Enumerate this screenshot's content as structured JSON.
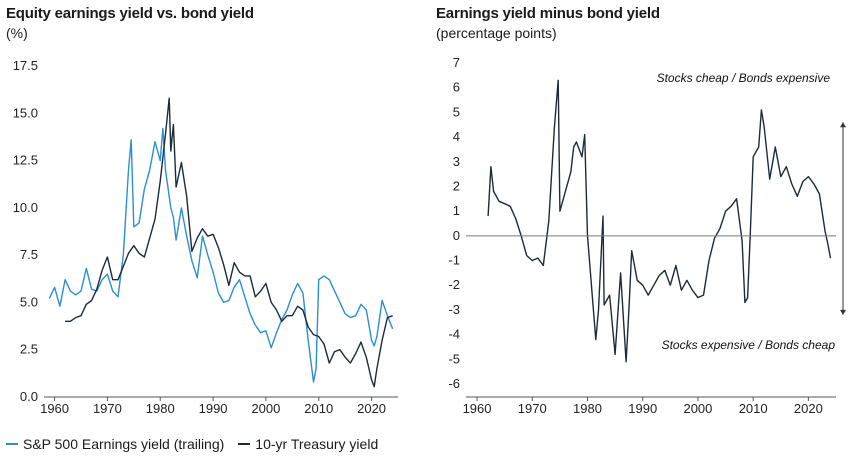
{
  "colors": {
    "earnings": "#2a8fd6",
    "treasury": "#1c2b3a",
    "axis": "#555555"
  },
  "left_panel": {
    "title": "Equity earnings yield vs. bond yield",
    "subtitle": "(%)"
  },
  "right_panel": {
    "title": "Earnings yield minus bond yield",
    "subtitle": "(percentage points)"
  },
  "legend": {
    "earnings_label": "S&P 500 Earnings yield (trailing)",
    "treasury_label": "10-yr Treasury yield"
  },
  "chart_data": [
    {
      "type": "line",
      "title": "Equity earnings yield vs. bond yield",
      "ylabel": "(%)",
      "xlim": [
        1958,
        2025
      ],
      "ylim": [
        0,
        17.5
      ],
      "x_ticks": [
        "1960",
        "1970",
        "1980",
        "1990",
        "2000",
        "2010",
        "2020"
      ],
      "y_ticks": [
        "0.0",
        "2.5",
        "5.0",
        "7.5",
        "10.0",
        "12.5",
        "15.0",
        "17.5"
      ],
      "grid": false,
      "legend": "bottom",
      "series": [
        {
          "name": "S&P 500 Earnings yield (trailing)",
          "x": [
            1959,
            1960,
            1961,
            1962,
            1963,
            1964,
            1965,
            1966,
            1967,
            1968,
            1969,
            1970,
            1971,
            1972,
            1973,
            1974,
            1974.5,
            1975,
            1976,
            1977,
            1978,
            1979,
            1980,
            1980.5,
            1981,
            1982,
            1982.5,
            1983,
            1984,
            1985,
            1986,
            1987,
            1988,
            1989,
            1990,
            1991,
            1992,
            1993,
            1994,
            1995,
            1996,
            1997,
            1998,
            1999,
            2000,
            2001,
            2002,
            2003,
            2004,
            2005,
            2006,
            2007,
            2008,
            2009,
            2009.5,
            2010,
            2011,
            2012,
            2013,
            2014,
            2015,
            2016,
            2017,
            2018,
            2019,
            2020,
            2020.5,
            2021,
            2022,
            2023,
            2024
          ],
          "values": [
            5.2,
            5.8,
            4.8,
            6.2,
            5.6,
            5.4,
            5.6,
            6.8,
            5.7,
            5.6,
            6.2,
            6.5,
            5.6,
            5.3,
            7.5,
            12.0,
            13.6,
            9.0,
            9.2,
            11.0,
            12.0,
            13.5,
            12.5,
            14.2,
            12.0,
            10.0,
            9.5,
            8.3,
            10.0,
            8.5,
            7.2,
            6.3,
            8.5,
            7.5,
            6.6,
            5.5,
            5.0,
            5.1,
            5.8,
            6.2,
            5.3,
            4.4,
            3.8,
            3.4,
            3.5,
            2.6,
            3.4,
            4.1,
            4.6,
            5.4,
            6.0,
            5.5,
            3.0,
            0.8,
            1.5,
            6.2,
            6.4,
            6.2,
            5.6,
            5.0,
            4.4,
            4.2,
            4.3,
            4.9,
            4.6,
            3.0,
            2.7,
            3.2,
            5.1,
            4.3,
            3.6
          ]
        },
        {
          "name": "10-yr Treasury yield",
          "x": [
            1962,
            1963,
            1964,
            1965,
            1966,
            1967,
            1968,
            1969,
            1970,
            1971,
            1972,
            1973,
            1974,
            1975,
            1976,
            1977,
            1978,
            1979,
            1980,
            1981,
            1981.7,
            1982,
            1982.5,
            1983,
            1984,
            1985,
            1986,
            1987,
            1988,
            1989,
            1990,
            1991,
            1992,
            1993,
            1994,
            1995,
            1996,
            1997,
            1998,
            1999,
            2000,
            2001,
            2002,
            2003,
            2004,
            2005,
            2006,
            2007,
            2008,
            2009,
            2010,
            2011,
            2012,
            2013,
            2014,
            2015,
            2016,
            2017,
            2018,
            2019,
            2020,
            2020.5,
            2021,
            2022,
            2023,
            2024
          ],
          "values": [
            4.0,
            4.0,
            4.2,
            4.3,
            4.9,
            5.1,
            5.7,
            6.7,
            7.4,
            6.2,
            6.2,
            6.9,
            7.6,
            8.0,
            7.6,
            7.4,
            8.4,
            9.4,
            11.4,
            13.9,
            15.8,
            13.0,
            14.4,
            11.1,
            12.4,
            10.6,
            7.7,
            8.4,
            8.9,
            8.5,
            8.6,
            7.9,
            7.0,
            5.9,
            7.1,
            6.6,
            6.4,
            6.4,
            5.3,
            5.6,
            6.0,
            5.0,
            4.6,
            4.0,
            4.3,
            4.3,
            4.8,
            4.6,
            3.7,
            3.3,
            3.2,
            2.8,
            1.8,
            2.4,
            2.5,
            2.1,
            1.8,
            2.3,
            2.9,
            2.1,
            0.9,
            0.55,
            1.5,
            3.0,
            4.2,
            4.3
          ]
        }
      ]
    },
    {
      "type": "line",
      "title": "Earnings yield minus bond yield",
      "ylabel": "(percentage points)",
      "xlim": [
        1958,
        2025
      ],
      "ylim": [
        -6,
        7
      ],
      "x_ticks": [
        "1960",
        "1970",
        "1980",
        "1990",
        "2000",
        "2010",
        "2020"
      ],
      "y_ticks": [
        "7",
        "6",
        "5",
        "4",
        "3",
        "2",
        "1",
        "0",
        "-1",
        "-2",
        "-3",
        "-4",
        "-5",
        "-6"
      ],
      "grid": false,
      "annotations": [
        "Stocks cheap / Bonds expensive",
        "Stocks expensive / Bonds cheap"
      ],
      "series": [
        {
          "x": [
            1962,
            1962.5,
            1963,
            1964,
            1965,
            1966,
            1967,
            1968,
            1969,
            1970,
            1971,
            1972,
            1973,
            1974,
            1974.7,
            1975,
            1976,
            1977,
            1977.5,
            1978,
            1979,
            1979.5,
            1980,
            1981,
            1981.5,
            1982,
            1982.8,
            1983,
            1984,
            1985,
            1986,
            1987,
            1987.5,
            1988,
            1989,
            1990,
            1991,
            1992,
            1993,
            1994,
            1995,
            1996,
            1997,
            1998,
            1999,
            2000,
            2001,
            2002,
            2003,
            2004,
            2005,
            2006,
            2007,
            2008,
            2008.5,
            2009,
            2009.5,
            2010,
            2011,
            2011.5,
            2012,
            2013,
            2014,
            2015,
            2016,
            2017,
            2018,
            2019,
            2020,
            2021,
            2022,
            2023,
            2023.5,
            2024
          ],
          "values": [
            0.8,
            2.8,
            1.8,
            1.4,
            1.3,
            1.2,
            0.7,
            0.0,
            -0.8,
            -1.0,
            -0.9,
            -1.2,
            0.6,
            4.4,
            6.3,
            1.0,
            1.8,
            2.6,
            3.6,
            3.8,
            3.2,
            4.1,
            0.0,
            -2.8,
            -4.2,
            -3.0,
            0.8,
            -2.8,
            -2.4,
            -4.8,
            -1.5,
            -5.1,
            -3.0,
            -0.6,
            -1.8,
            -2.0,
            -2.4,
            -2.0,
            -1.6,
            -1.4,
            -2.0,
            -1.2,
            -2.2,
            -1.8,
            -2.2,
            -2.5,
            -2.4,
            -1.0,
            -0.1,
            0.3,
            1.0,
            1.2,
            1.5,
            -0.2,
            -2.7,
            -2.5,
            0.2,
            3.2,
            3.6,
            5.1,
            4.4,
            2.3,
            3.6,
            2.4,
            2.8,
            2.1,
            1.6,
            2.2,
            2.4,
            2.1,
            1.7,
            0.2,
            -0.3,
            -0.9
          ]
        }
      ]
    }
  ]
}
